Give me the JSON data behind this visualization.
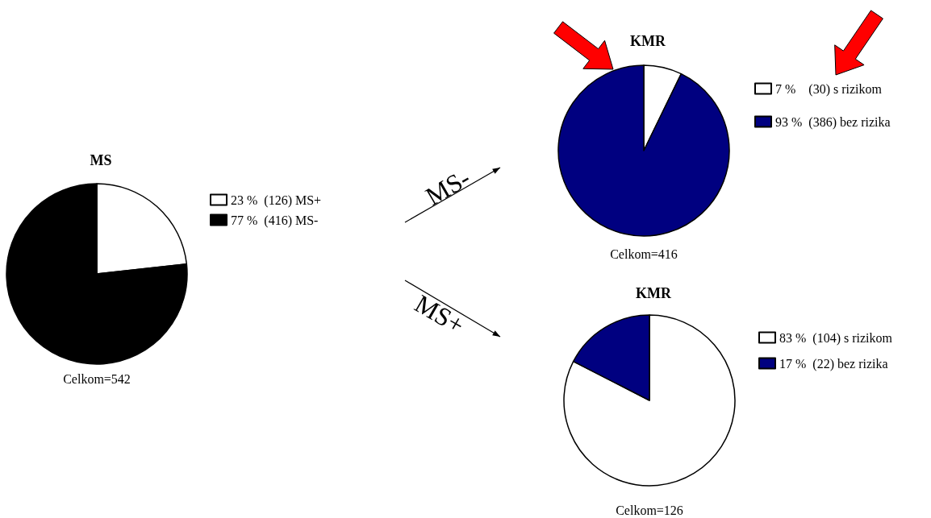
{
  "chart_data": [
    {
      "type": "pie",
      "title": "MS",
      "categories": [
        "23 %  (126) MS+",
        "77 %  (416) MS-"
      ],
      "values": [
        126,
        416
      ],
      "colors": [
        "#ffffff",
        "#000000"
      ],
      "legend": "right",
      "annotations": [
        "Celkom=542",
        "MS-",
        "MS+"
      ]
    },
    {
      "type": "pie",
      "title": "KMR",
      "categories": [
        "7 %    (30) s rizikom",
        "93 %  (386) bez rizika"
      ],
      "values": [
        30,
        386
      ],
      "colors": [
        "#ffffff",
        "#000080"
      ],
      "legend": "right",
      "annotations": [
        "Celkom=416"
      ]
    },
    {
      "type": "pie",
      "title": "KMR",
      "categories": [
        "83 %  (104) s rizikom",
        "17 %  (22) bez rizika"
      ],
      "values": [
        104,
        22
      ],
      "colors": [
        "#ffffff",
        "#000080"
      ],
      "legend": "right",
      "annotations": [
        "Celkom=126"
      ]
    }
  ]
}
